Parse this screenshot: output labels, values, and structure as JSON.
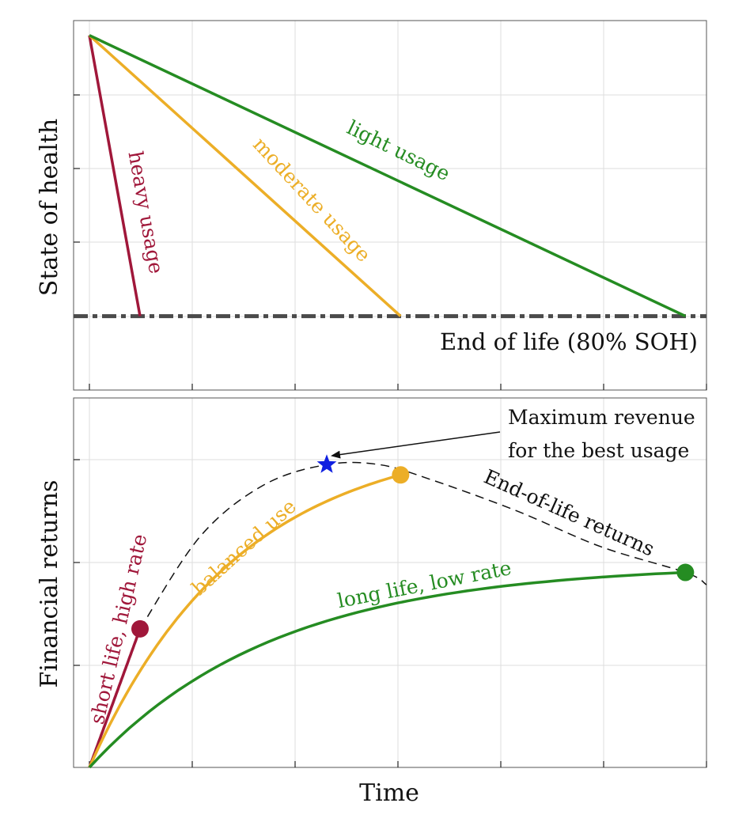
{
  "colors": {
    "heavy": "#a0173a",
    "moderate": "#ecae27",
    "light": "#258c22",
    "eol_line": "#4a4a4a",
    "eol_curve": "#111111",
    "star": "#1020e0",
    "grid": "#dddddd"
  },
  "chart_data": [
    {
      "type": "line",
      "ylabel": "State of health",
      "xlabel": "",
      "xlim": [
        0,
        6
      ],
      "ylim": [
        0,
        5
      ],
      "grid": true,
      "tick_labels": false,
      "series": [
        {
          "name": "heavy usage",
          "color_key": "heavy",
          "x": [
            0.15,
            0.63
          ],
          "y": [
            4.8,
            1.0
          ]
        },
        {
          "name": "moderate usage",
          "color_key": "moderate",
          "x": [
            0.15,
            3.1
          ],
          "y": [
            4.8,
            1.0
          ]
        },
        {
          "name": "light usage",
          "color_key": "light",
          "x": [
            0.15,
            5.8
          ],
          "y": [
            4.8,
            1.0
          ]
        }
      ],
      "reference_lines": [
        {
          "label": "End of life (80% SOH)",
          "y": 1.0,
          "style": "dash-dot"
        }
      ]
    },
    {
      "type": "line",
      "ylabel": "Financial returns",
      "xlabel": "Time",
      "xlim": [
        0,
        6
      ],
      "ylim": [
        0,
        3.6
      ],
      "grid": true,
      "tick_labels": false,
      "series": [
        {
          "name": "short life, high rate",
          "color_key": "heavy",
          "shape": "linear",
          "x_end": 0.63,
          "y_end": 1.35
        },
        {
          "name": "balanced use",
          "color_key": "moderate",
          "shape": "saturating",
          "x_end": 3.1,
          "y_end": 2.85
        },
        {
          "name": "long life, low rate",
          "color_key": "light",
          "shape": "saturating",
          "x_end": 5.8,
          "y_end": 1.9
        }
      ],
      "eol_curve": {
        "label": "End-of-life returns",
        "x": [
          0.63,
          1.2,
          1.8,
          2.4,
          2.9,
          3.4,
          4.2,
          5.0,
          5.8,
          6.0
        ],
        "y": [
          1.35,
          2.25,
          2.75,
          2.95,
          2.95,
          2.8,
          2.5,
          2.15,
          1.9,
          1.78
        ]
      },
      "max_point": {
        "x": 2.4,
        "y": 2.95
      },
      "annotation": [
        "Maximum revenue",
        "for the best usage"
      ]
    }
  ]
}
